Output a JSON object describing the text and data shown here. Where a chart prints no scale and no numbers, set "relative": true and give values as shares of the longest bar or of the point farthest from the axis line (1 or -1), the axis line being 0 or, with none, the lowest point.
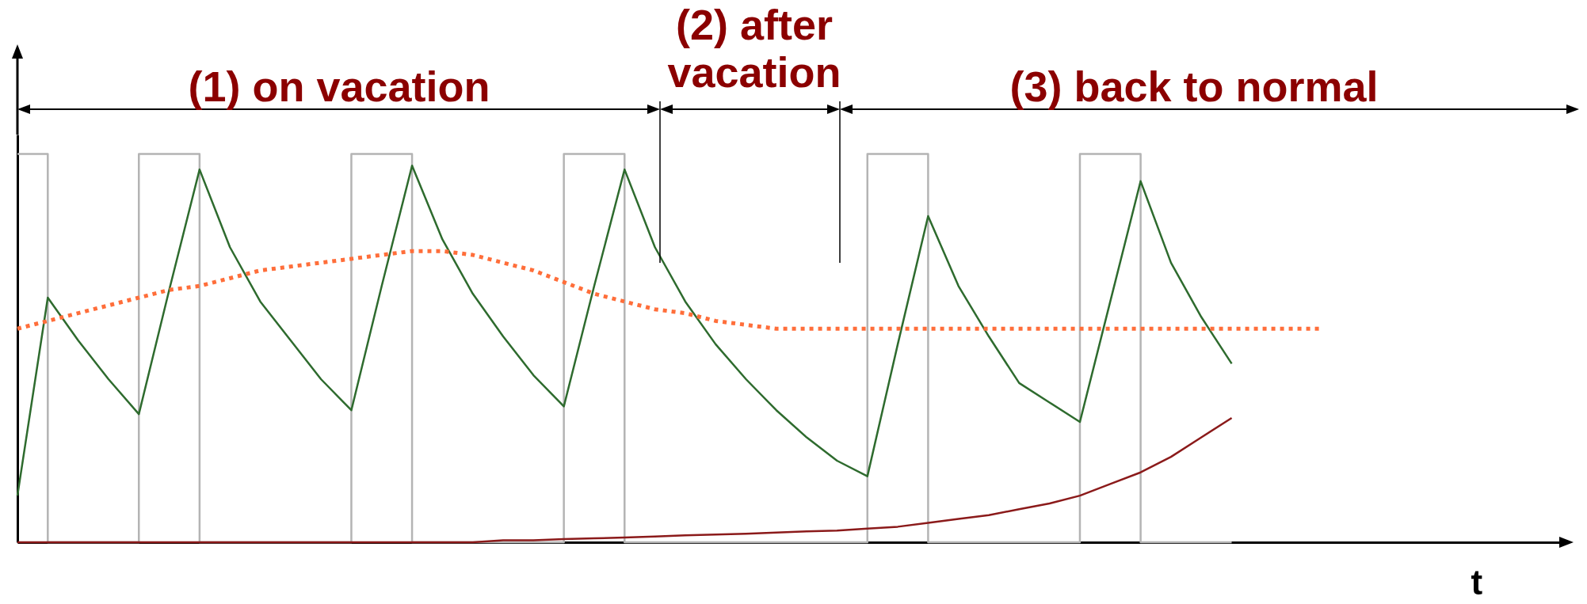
{
  "chart_data": {
    "type": "line",
    "relative": true,
    "xlabel": "t",
    "marker": "none",
    "categories": [
      null,
      null,
      null,
      null,
      null,
      null,
      null,
      null,
      null,
      null,
      null,
      null,
      null,
      null,
      null,
      null,
      null,
      null,
      null,
      null,
      null,
      null,
      null,
      null,
      null,
      null,
      null,
      null,
      null,
      null,
      null,
      null,
      null,
      null,
      null,
      null,
      null,
      null,
      null,
      null,
      null,
      null,
      null,
      null,
      null,
      null,
      null,
      null,
      null,
      null,
      null,
      null
    ],
    "series": [
      {
        "type": "step",
        "color": "#b4b4b4",
        "line_style": "solid",
        "values": [
          1,
          0,
          0,
          0,
          1,
          1,
          0,
          0,
          0,
          0,
          0,
          1,
          1,
          0,
          0,
          0,
          0,
          0,
          1,
          1,
          0,
          0,
          0,
          0,
          0,
          0,
          0,
          0,
          1,
          1,
          0,
          0,
          0,
          0,
          0,
          1,
          1,
          0,
          0,
          0,
          0,
          null,
          null,
          null,
          null,
          null,
          null,
          null,
          null,
          null,
          null,
          null
        ]
      },
      {
        "color": "#2e6b2e",
        "line_style": "solid",
        "values": [
          0.12,
          0.63,
          0.52,
          0.42,
          0.33,
          0.65,
          0.96,
          0.76,
          0.62,
          0.52,
          0.42,
          0.34,
          0.66,
          0.97,
          0.78,
          0.64,
          0.53,
          0.43,
          0.35,
          0.66,
          0.96,
          0.76,
          0.62,
          0.51,
          0.42,
          0.34,
          0.27,
          0.21,
          0.17,
          0.51,
          0.84,
          0.66,
          0.53,
          0.41,
          0.36,
          0.31,
          0.62,
          0.93,
          0.72,
          0.58,
          0.46,
          null,
          null,
          null,
          null,
          null,
          null,
          null,
          null,
          null,
          null,
          null
        ]
      },
      {
        "color": "#ff6e3a",
        "line_style": "dotted",
        "values": [
          0.55,
          0.57,
          0.59,
          0.61,
          0.63,
          0.65,
          0.66,
          0.68,
          0.7,
          0.71,
          0.72,
          0.73,
          0.74,
          0.75,
          0.75,
          0.74,
          0.72,
          0.7,
          0.67,
          0.64,
          0.62,
          0.6,
          0.59,
          0.57,
          0.56,
          0.55,
          0.55,
          0.55,
          0.55,
          0.55,
          0.55,
          0.55,
          0.55,
          0.55,
          0.55,
          0.55,
          0.55,
          0.55,
          0.55,
          0.55,
          0.55,
          0.55,
          0.55,
          0.55,
          null,
          null,
          null,
          null,
          null,
          null,
          null,
          null
        ]
      },
      {
        "color": "#8b1a1a",
        "line_style": "solid",
        "values": [
          0,
          0,
          0,
          0,
          0,
          0,
          0,
          0,
          0,
          0,
          0,
          0,
          0,
          0,
          0,
          0,
          0.005,
          0.005,
          0.008,
          0.01,
          0.012,
          0.015,
          0.018,
          0.02,
          0.022,
          0.025,
          0.028,
          0.03,
          0.035,
          0.04,
          0.05,
          0.06,
          0.07,
          0.085,
          0.1,
          0.12,
          0.15,
          0.18,
          0.22,
          0.27,
          0.32,
          null,
          null,
          null,
          null,
          null,
          null,
          null,
          null,
          null,
          null,
          null
        ]
      }
    ],
    "annotations": [
      "(1) on vacation",
      "(2) after vacation",
      "(3) back to normal"
    ]
  }
}
